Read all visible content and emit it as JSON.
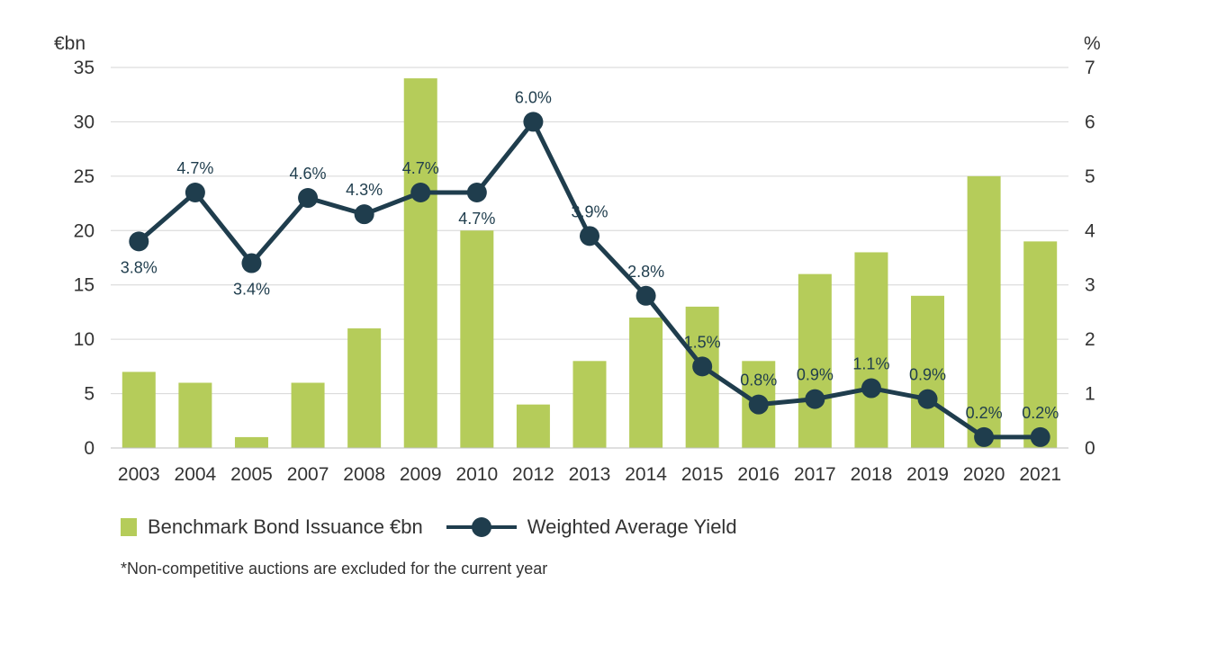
{
  "chart_data": {
    "type": "bar",
    "categories": [
      "2003",
      "2004",
      "2005",
      "2007",
      "2008",
      "2009",
      "2010",
      "2012",
      "2013",
      "2014",
      "2015",
      "2016",
      "2017",
      "2018",
      "2019",
      "2020",
      "2021"
    ],
    "left_axis": {
      "unit": "€bn",
      "range": [
        0,
        35
      ],
      "ticks": [
        0,
        5,
        10,
        15,
        20,
        25,
        30,
        35
      ]
    },
    "right_axis": {
      "unit": "%",
      "range": [
        0,
        7
      ],
      "ticks": [
        0,
        1,
        2,
        3,
        4,
        5,
        6,
        7
      ]
    },
    "series": [
      {
        "name": "Benchmark Bond Issuance €bn",
        "type": "bar",
        "axis": "left",
        "values": [
          7,
          6,
          1,
          6,
          11,
          34,
          20,
          4,
          8,
          12,
          13,
          8,
          16,
          18,
          14,
          25,
          19
        ]
      },
      {
        "name": "Weighted Average Yield",
        "type": "line",
        "axis": "right",
        "values": [
          3.8,
          4.7,
          3.4,
          4.6,
          4.3,
          4.7,
          4.7,
          6.0,
          3.9,
          2.8,
          1.5,
          0.8,
          0.9,
          1.1,
          0.9,
          0.2,
          0.2
        ],
        "labels": [
          "3.8%",
          "4.7%",
          "3.4%",
          "4.6%",
          "4.3%",
          "4.7%",
          "4.7%",
          "6.0%",
          "3.9%",
          "2.8%",
          "1.5%",
          "0.8%",
          "0.9%",
          "1.1%",
          "0.9%",
          "0.2%",
          "0.2%"
        ],
        "label_position": [
          "below",
          "above",
          "below",
          "above",
          "above",
          "above",
          "below",
          "above",
          "above",
          "above",
          "above",
          "above",
          "above",
          "above",
          "above",
          "above",
          "above"
        ]
      }
    ],
    "grid": true,
    "legend_position": "bottom-left",
    "colors": {
      "bar": "#b5cc5a",
      "line": "#1f3d4d",
      "grid": "#d6d6d6",
      "text": "#333333"
    }
  },
  "footnote": "*Non-competitive auctions are excluded for the current year"
}
